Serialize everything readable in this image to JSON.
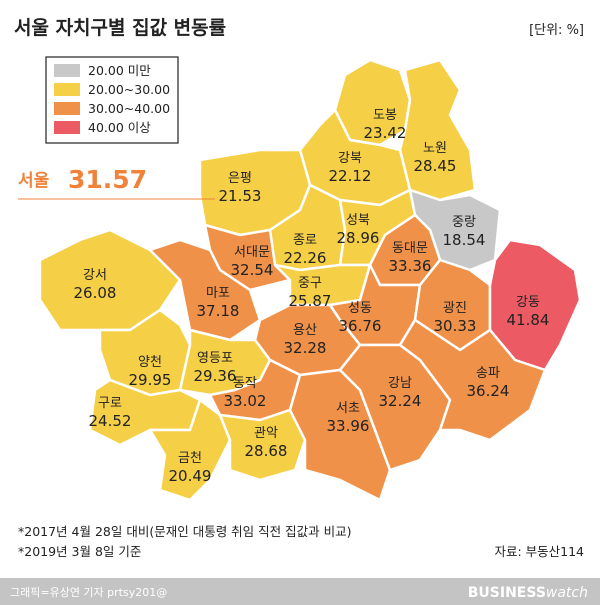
{
  "header": {
    "title": "서울 자치구별 집값 변동률",
    "unit": "[단위: %]"
  },
  "legend": [
    {
      "label": "20.00 미만",
      "color": "#c8c8c8"
    },
    {
      "label": "20.00~30.00",
      "color": "#f5cf45"
    },
    {
      "label": "30.00~40.00",
      "color": "#f0914a"
    },
    {
      "label": "40.00 이상",
      "color": "#ec5b63"
    }
  ],
  "headline": {
    "name": "서울",
    "value": 31.57
  },
  "districts": [
    {
      "name": "도봉",
      "value": 23.42,
      "color": "#f5cf45"
    },
    {
      "name": "노원",
      "value": 28.45,
      "color": "#f5cf45"
    },
    {
      "name": "강북",
      "value": 22.12,
      "color": "#f5cf45"
    },
    {
      "name": "은평",
      "value": 21.53,
      "color": "#f5cf45"
    },
    {
      "name": "종로",
      "value": 22.26,
      "color": "#f5cf45"
    },
    {
      "name": "성북",
      "value": 28.96,
      "color": "#f5cf45"
    },
    {
      "name": "중랑",
      "value": 18.54,
      "color": "#c8c8c8"
    },
    {
      "name": "동대문",
      "value": 33.36,
      "color": "#f0914a"
    },
    {
      "name": "서대문",
      "value": 32.54,
      "color": "#f0914a"
    },
    {
      "name": "강서",
      "value": 26.08,
      "color": "#f5cf45"
    },
    {
      "name": "마포",
      "value": 37.18,
      "color": "#f0914a"
    },
    {
      "name": "중구",
      "value": 25.87,
      "color": "#f5cf45"
    },
    {
      "name": "성동",
      "value": 36.76,
      "color": "#f0914a"
    },
    {
      "name": "광진",
      "value": 30.33,
      "color": "#f0914a"
    },
    {
      "name": "강동",
      "value": 41.84,
      "color": "#ec5b63"
    },
    {
      "name": "용산",
      "value": 32.28,
      "color": "#f0914a"
    },
    {
      "name": "양천",
      "value": 29.95,
      "color": "#f5cf45"
    },
    {
      "name": "영등포",
      "value": 29.36,
      "color": "#f5cf45"
    },
    {
      "name": "구로",
      "value": 24.52,
      "color": "#f5cf45"
    },
    {
      "name": "동작",
      "value": 33.02,
      "color": "#f0914a"
    },
    {
      "name": "금천",
      "value": 20.49,
      "color": "#f5cf45"
    },
    {
      "name": "관악",
      "value": 28.68,
      "color": "#f5cf45"
    },
    {
      "name": "서초",
      "value": 33.96,
      "color": "#f0914a"
    },
    {
      "name": "강남",
      "value": 32.24,
      "color": "#f0914a"
    },
    {
      "name": "송파",
      "value": 36.24,
      "color": "#f0914a"
    }
  ],
  "notes": [
    "*2017년 4월 28일 대비(문재인 대통령 취임 직전 집값과 비교)",
    "*2019년 3월 8일 기준"
  ],
  "source": "자료: 부동산114",
  "footer": {
    "credit": "그래픽=유상연 기자 prtsy201@",
    "brand_bold": "BUSINESS",
    "brand_light": "watch"
  }
}
